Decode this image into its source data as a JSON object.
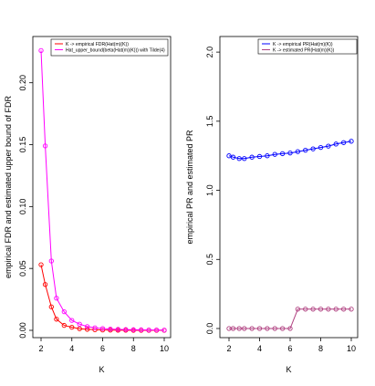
{
  "chart_data": [
    {
      "type": "line",
      "xlabel": "K",
      "ylabel": "empirical FDR and estimated upper bound of FDR",
      "xlim": [
        2,
        10
      ],
      "ylim": [
        0,
        0.23
      ],
      "xticks": [
        "2",
        "4",
        "6",
        "8",
        "10"
      ],
      "yticks": [
        "0.00",
        "0.05",
        "0.10",
        "0.15",
        "0.20"
      ],
      "legend_position": "top-right",
      "x": [
        2,
        2.27,
        2.67,
        3,
        3.5,
        4,
        4.5,
        5,
        5.5,
        6,
        6.5,
        7,
        7.5,
        8,
        8.5,
        9,
        9.5,
        10
      ],
      "series": [
        {
          "name": "K -> empirical FDR(Hat(m)(K))",
          "color": "#ff0000",
          "values": [
            0.053,
            0.037,
            0.019,
            0.009,
            0.004,
            0.0025,
            0.0013,
            0.0008,
            0.0005,
            0.0003,
            0.0002,
            0.0001,
            0.0001,
            0,
            0,
            0,
            0,
            0
          ]
        },
        {
          "name": "Hat_upper_bound(beta(Hat(m)(K))) with Tilde(4)",
          "color": "#ff00ff",
          "values": [
            0.226,
            0.149,
            0.056,
            0.026,
            0.015,
            0.008,
            0.005,
            0.003,
            0.002,
            0.0015,
            0.001,
            0.0008,
            0.0006,
            0.0005,
            0.0004,
            0.0003,
            0.0003,
            0.0002
          ]
        }
      ]
    },
    {
      "type": "line",
      "xlabel": "K",
      "ylabel": "empirical PR and estimated PR",
      "xlim": [
        2,
        10
      ],
      "ylim": [
        0,
        2.08
      ],
      "xticks": [
        "2",
        "4",
        "6",
        "8",
        "10"
      ],
      "yticks": [
        "0.0",
        "0.5",
        "1.0",
        "1.5",
        "2.0"
      ],
      "legend_position": "top-right",
      "x": [
        2,
        2.27,
        2.67,
        3,
        3.5,
        4,
        4.5,
        5,
        5.5,
        6,
        6.5,
        7,
        7.5,
        8,
        8.5,
        9,
        9.5,
        10
      ],
      "series": [
        {
          "name": "K -> empirical PR(Hat(m)(K))",
          "color": "#0000ff",
          "values": [
            1.25,
            1.24,
            1.23,
            1.23,
            1.24,
            1.245,
            1.25,
            1.26,
            1.265,
            1.27,
            1.28,
            1.29,
            1.3,
            1.31,
            1.32,
            1.335,
            1.345,
            1.355
          ]
        },
        {
          "name": "K -> estimated PR(Hat(m)(K))",
          "color": "#b04080",
          "values": [
            0,
            0,
            0,
            0,
            0,
            0,
            0,
            0,
            0,
            0,
            0.14,
            0.14,
            0.14,
            0.14,
            0.14,
            0.14,
            0.14,
            0.14
          ]
        }
      ]
    }
  ]
}
